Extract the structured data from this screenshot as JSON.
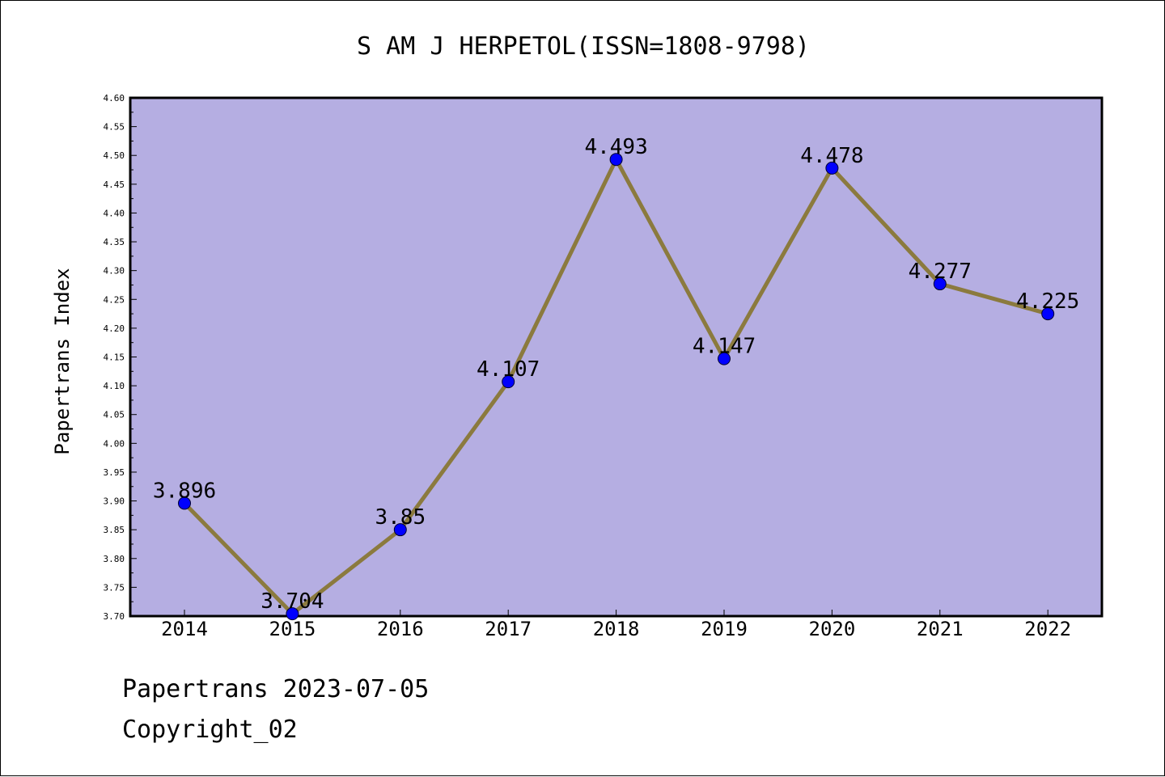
{
  "chart_data": {
    "type": "line",
    "title": "S AM J HERPETOL(ISSN=1808-9798)",
    "ylabel": "Papertrans Index",
    "xlabel": "",
    "categories": [
      "2014",
      "2015",
      "2016",
      "2017",
      "2018",
      "2019",
      "2020",
      "2021",
      "2022"
    ],
    "values": [
      3.896,
      3.704,
      3.85,
      4.107,
      4.493,
      4.147,
      4.478,
      4.277,
      4.225
    ],
    "data_labels": [
      "3.896",
      "3.704",
      "3.85",
      "4.107",
      "4.493",
      "4.147",
      "4.478",
      "4.277",
      "4.225"
    ],
    "ylim": [
      3.7,
      4.6
    ],
    "yticks": [
      "3.70",
      "3.75",
      "3.80",
      "3.85",
      "3.90",
      "3.95",
      "4.00",
      "4.05",
      "4.10",
      "4.15",
      "4.20",
      "4.25",
      "4.30",
      "4.35",
      "4.40",
      "4.45",
      "4.50",
      "4.55",
      "4.60"
    ],
    "grid": false,
    "colors": {
      "plot_background": "#b5aee2",
      "line": "#8b7a3e",
      "marker": "#0000ff"
    }
  },
  "footer": {
    "line1": "Papertrans 2023-07-05",
    "line2": "Copyright_02"
  }
}
